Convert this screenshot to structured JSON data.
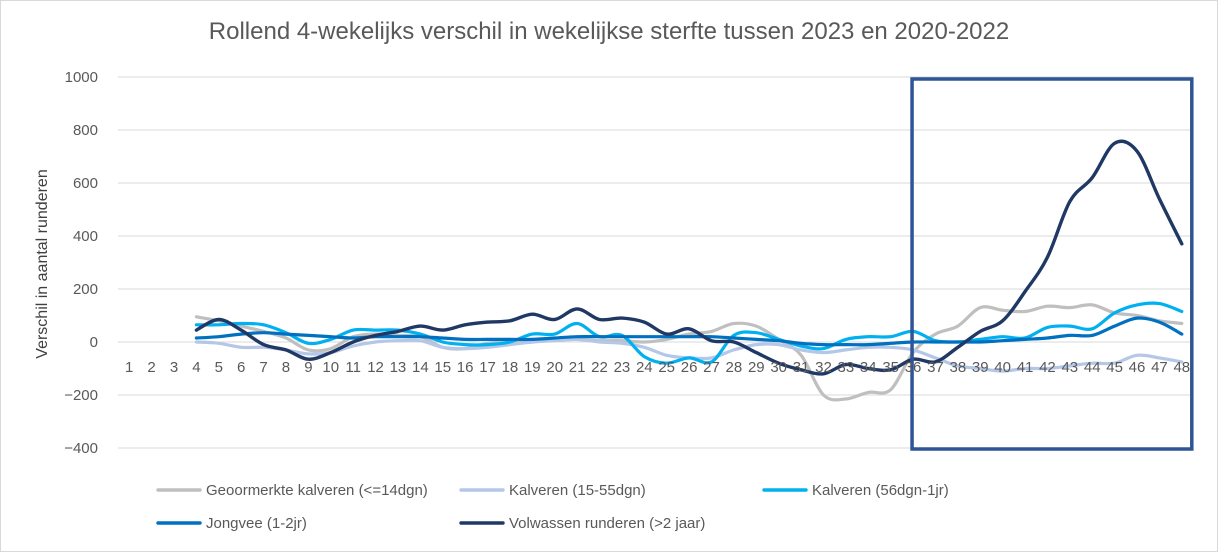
{
  "chart_data": {
    "type": "line",
    "title": "Rollend 4-wekelijks verschil in wekelijkse sterfte tussen 2023 en 2020-2022",
    "ylabel": "Verschil in aantal runderen",
    "xlabel": "",
    "ylim": [
      -400,
      1000
    ],
    "yticks": [
      -400,
      -200,
      0,
      200,
      400,
      600,
      800,
      1000
    ],
    "categories": [
      "1",
      "2",
      "3",
      "4",
      "5",
      "6",
      "7",
      "8",
      "9",
      "10",
      "11",
      "12",
      "13",
      "14",
      "15",
      "16",
      "17",
      "18",
      "19",
      "20",
      "21",
      "22",
      "23",
      "24",
      "25",
      "26",
      "27",
      "28",
      "29",
      "30",
      "31",
      "32",
      "33",
      "34",
      "35",
      "36",
      "37",
      "38",
      "39",
      "40",
      "41",
      "42",
      "43",
      "44",
      "45",
      "46",
      "47",
      "48"
    ],
    "grid": "horizontal",
    "legend_position": "bottom",
    "highlight_box": {
      "from_week": 36,
      "to_week": 48
    },
    "series": [
      {
        "name": "Geoormerkte kalveren (<=14dgn)",
        "color": "#bfbfbf",
        "values": [
          null,
          null,
          null,
          95,
          80,
          60,
          40,
          15,
          -30,
          -25,
          20,
          30,
          25,
          20,
          -20,
          -25,
          -5,
          0,
          0,
          10,
          10,
          5,
          5,
          0,
          10,
          30,
          40,
          70,
          60,
          10,
          -50,
          -200,
          -215,
          -190,
          -180,
          -40,
          30,
          60,
          130,
          120,
          115,
          135,
          130,
          140,
          110,
          100,
          80,
          70
        ]
      },
      {
        "name": "Kalveren (15-55dgn)",
        "color": "#b4c7e7",
        "values": [
          null,
          null,
          null,
          0,
          -5,
          -20,
          -20,
          -30,
          -45,
          -40,
          -15,
          0,
          5,
          5,
          -20,
          -25,
          -20,
          -10,
          0,
          5,
          10,
          0,
          -5,
          -20,
          -50,
          -60,
          -60,
          -30,
          -10,
          -10,
          -30,
          -40,
          -30,
          -20,
          -20,
          -30,
          -60,
          -90,
          -100,
          -110,
          -100,
          -100,
          -90,
          -80,
          -80,
          -50,
          -60,
          -75
        ]
      },
      {
        "name": "Kalveren (56dgn-1jr)",
        "color": "#00b0f0",
        "values": [
          null,
          null,
          null,
          65,
          65,
          70,
          65,
          35,
          -5,
          10,
          45,
          45,
          45,
          30,
          0,
          -10,
          -10,
          0,
          30,
          30,
          70,
          20,
          25,
          -55,
          -80,
          -60,
          -75,
          25,
          35,
          10,
          -15,
          -25,
          10,
          20,
          20,
          40,
          5,
          0,
          10,
          20,
          15,
          55,
          60,
          50,
          110,
          140,
          145,
          115
        ]
      },
      {
        "name": "Jongvee (1-2jr)",
        "color": "#0070c0",
        "values": [
          null,
          null,
          null,
          15,
          20,
          30,
          35,
          30,
          25,
          20,
          15,
          20,
          20,
          20,
          15,
          10,
          10,
          10,
          10,
          15,
          20,
          20,
          20,
          20,
          20,
          20,
          20,
          15,
          10,
          5,
          -5,
          -10,
          -10,
          -10,
          -5,
          0,
          0,
          0,
          0,
          5,
          10,
          15,
          25,
          25,
          60,
          90,
          75,
          30
        ]
      },
      {
        "name": "Volwassen runderen (>2 jaar)",
        "color": "#203864",
        "values": [
          null,
          null,
          null,
          45,
          85,
          45,
          -10,
          -30,
          -65,
          -40,
          0,
          25,
          40,
          60,
          45,
          65,
          75,
          80,
          105,
          85,
          125,
          85,
          90,
          75,
          30,
          50,
          5,
          0,
          -40,
          -80,
          -105,
          -120,
          -85,
          -100,
          -105,
          -65,
          -75,
          -20,
          40,
          80,
          190,
          320,
          530,
          620,
          750,
          720,
          540,
          370
        ]
      }
    ]
  }
}
